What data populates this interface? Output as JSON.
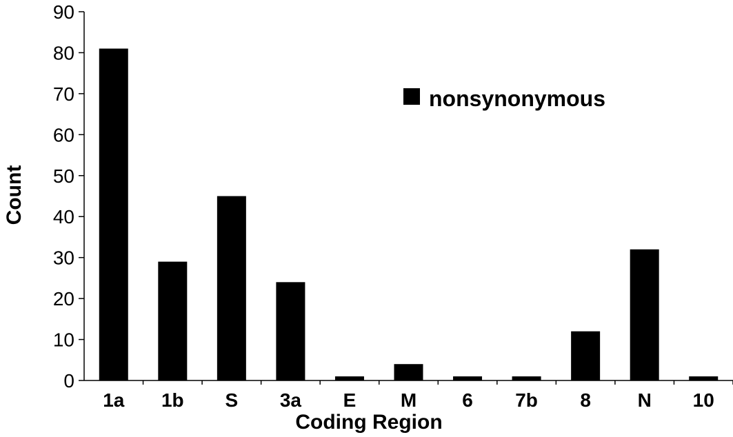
{
  "chart_data": {
    "type": "bar",
    "categories": [
      "1a",
      "1b",
      "S",
      "3a",
      "E",
      "M",
      "6",
      "7b",
      "8",
      "N",
      "10"
    ],
    "series": [
      {
        "name": "nonsynonymous",
        "values": [
          81,
          29,
          45,
          24,
          1,
          4,
          1,
          1,
          12,
          32,
          1
        ],
        "color": "#000000"
      }
    ],
    "xlabel": "Coding Region",
    "ylabel": "Count",
    "ylim": [
      0,
      90
    ],
    "yticks": [
      "0",
      "10",
      "20",
      "30",
      "40",
      "50",
      "60",
      "70",
      "80",
      "90"
    ],
    "grid": false,
    "legend_position": "top-right"
  }
}
